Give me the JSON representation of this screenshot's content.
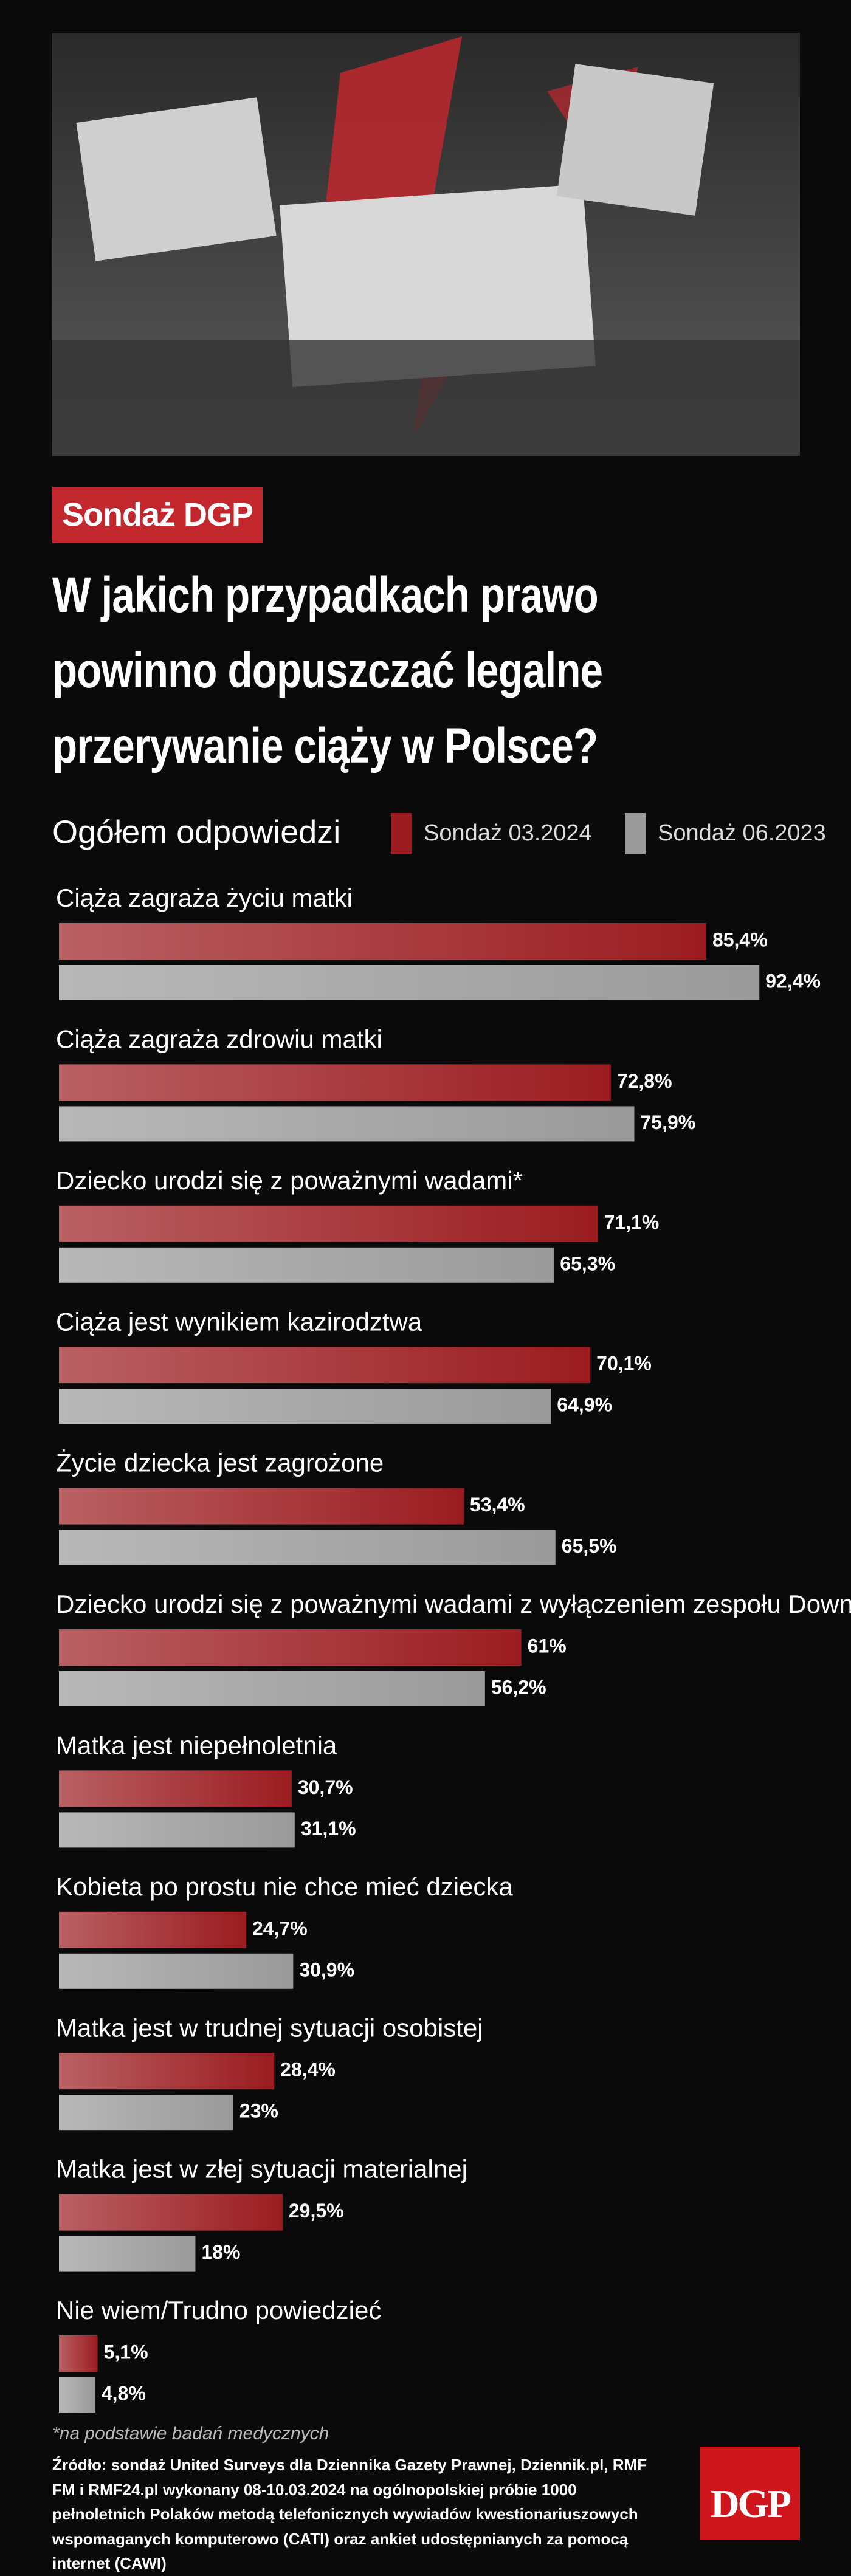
{
  "chart_data": {
    "type": "bar",
    "badge": "Sondaż DGP",
    "title": "W jakich przypadkach prawo powinno dopuszczać legalne przerywanie ciąży w Polsce?",
    "subtitle": "Ogółem odpowiedzi",
    "categories": [
      "Ciąża zagraża życiu matki",
      "Ciąża zagraża zdrowiu matki",
      "Dziecko urodzi się z poważnymi wadami*",
      "Ciąża jest wynikiem kazirodztwa",
      "Życie dziecka jest zagrożone",
      "Dziecko urodzi się z poważnymi wadami z wyłączeniem zespołu Downa*",
      "Matka jest niepełnoletnia",
      "Kobieta po prostu nie chce mieć dziecka",
      "Matka jest w trudnej sytuacji osobistej",
      "Matka jest w złej sytuacji materialnej",
      "Nie wiem/Trudno powiedzieć"
    ],
    "series": [
      {
        "name": "Sondaż 03.2024",
        "color": "#9b1c20",
        "values": [
          85.4,
          72.8,
          71.1,
          70.1,
          53.4,
          61,
          30.7,
          24.7,
          28.4,
          29.5,
          5.1
        ],
        "value_labels": [
          "85,4%",
          "72,8%",
          "71,1%",
          "70,1%",
          "53,4%",
          "61%",
          "30,7%",
          "24,7%",
          "28,4%",
          "29,5%",
          "5,1%"
        ]
      },
      {
        "name": "Sondaż 06.2023",
        "color": "#9a9a9a",
        "values": [
          92.4,
          75.9,
          65.3,
          64.9,
          65.5,
          56.2,
          31.1,
          30.9,
          23,
          18,
          4.8
        ],
        "value_labels": [
          "92,4%",
          "75,9%",
          "65,3%",
          "64,9%",
          "65,5%",
          "56,2%",
          "31,1%",
          "30,9%",
          "23%",
          "18%",
          "4,8%"
        ]
      }
    ],
    "footnote": "*na podstawie badań medycznych",
    "source": "Źródło: sondaż United Surveys dla Dziennika Gazety Prawnej, Dziennik.pl, RMF FM i RMF24.pl wykonany 08-10.03.2024 na ogólnopolskiej próbie 1000 pełnoletnich Polaków metodą telefonicznych wywiadów kwestionariuszowych wspomaganych komputerowo (CATI) oraz ankiet udostępnianych za pomocą internet (CAWI)",
    "logo": "DGP"
  }
}
